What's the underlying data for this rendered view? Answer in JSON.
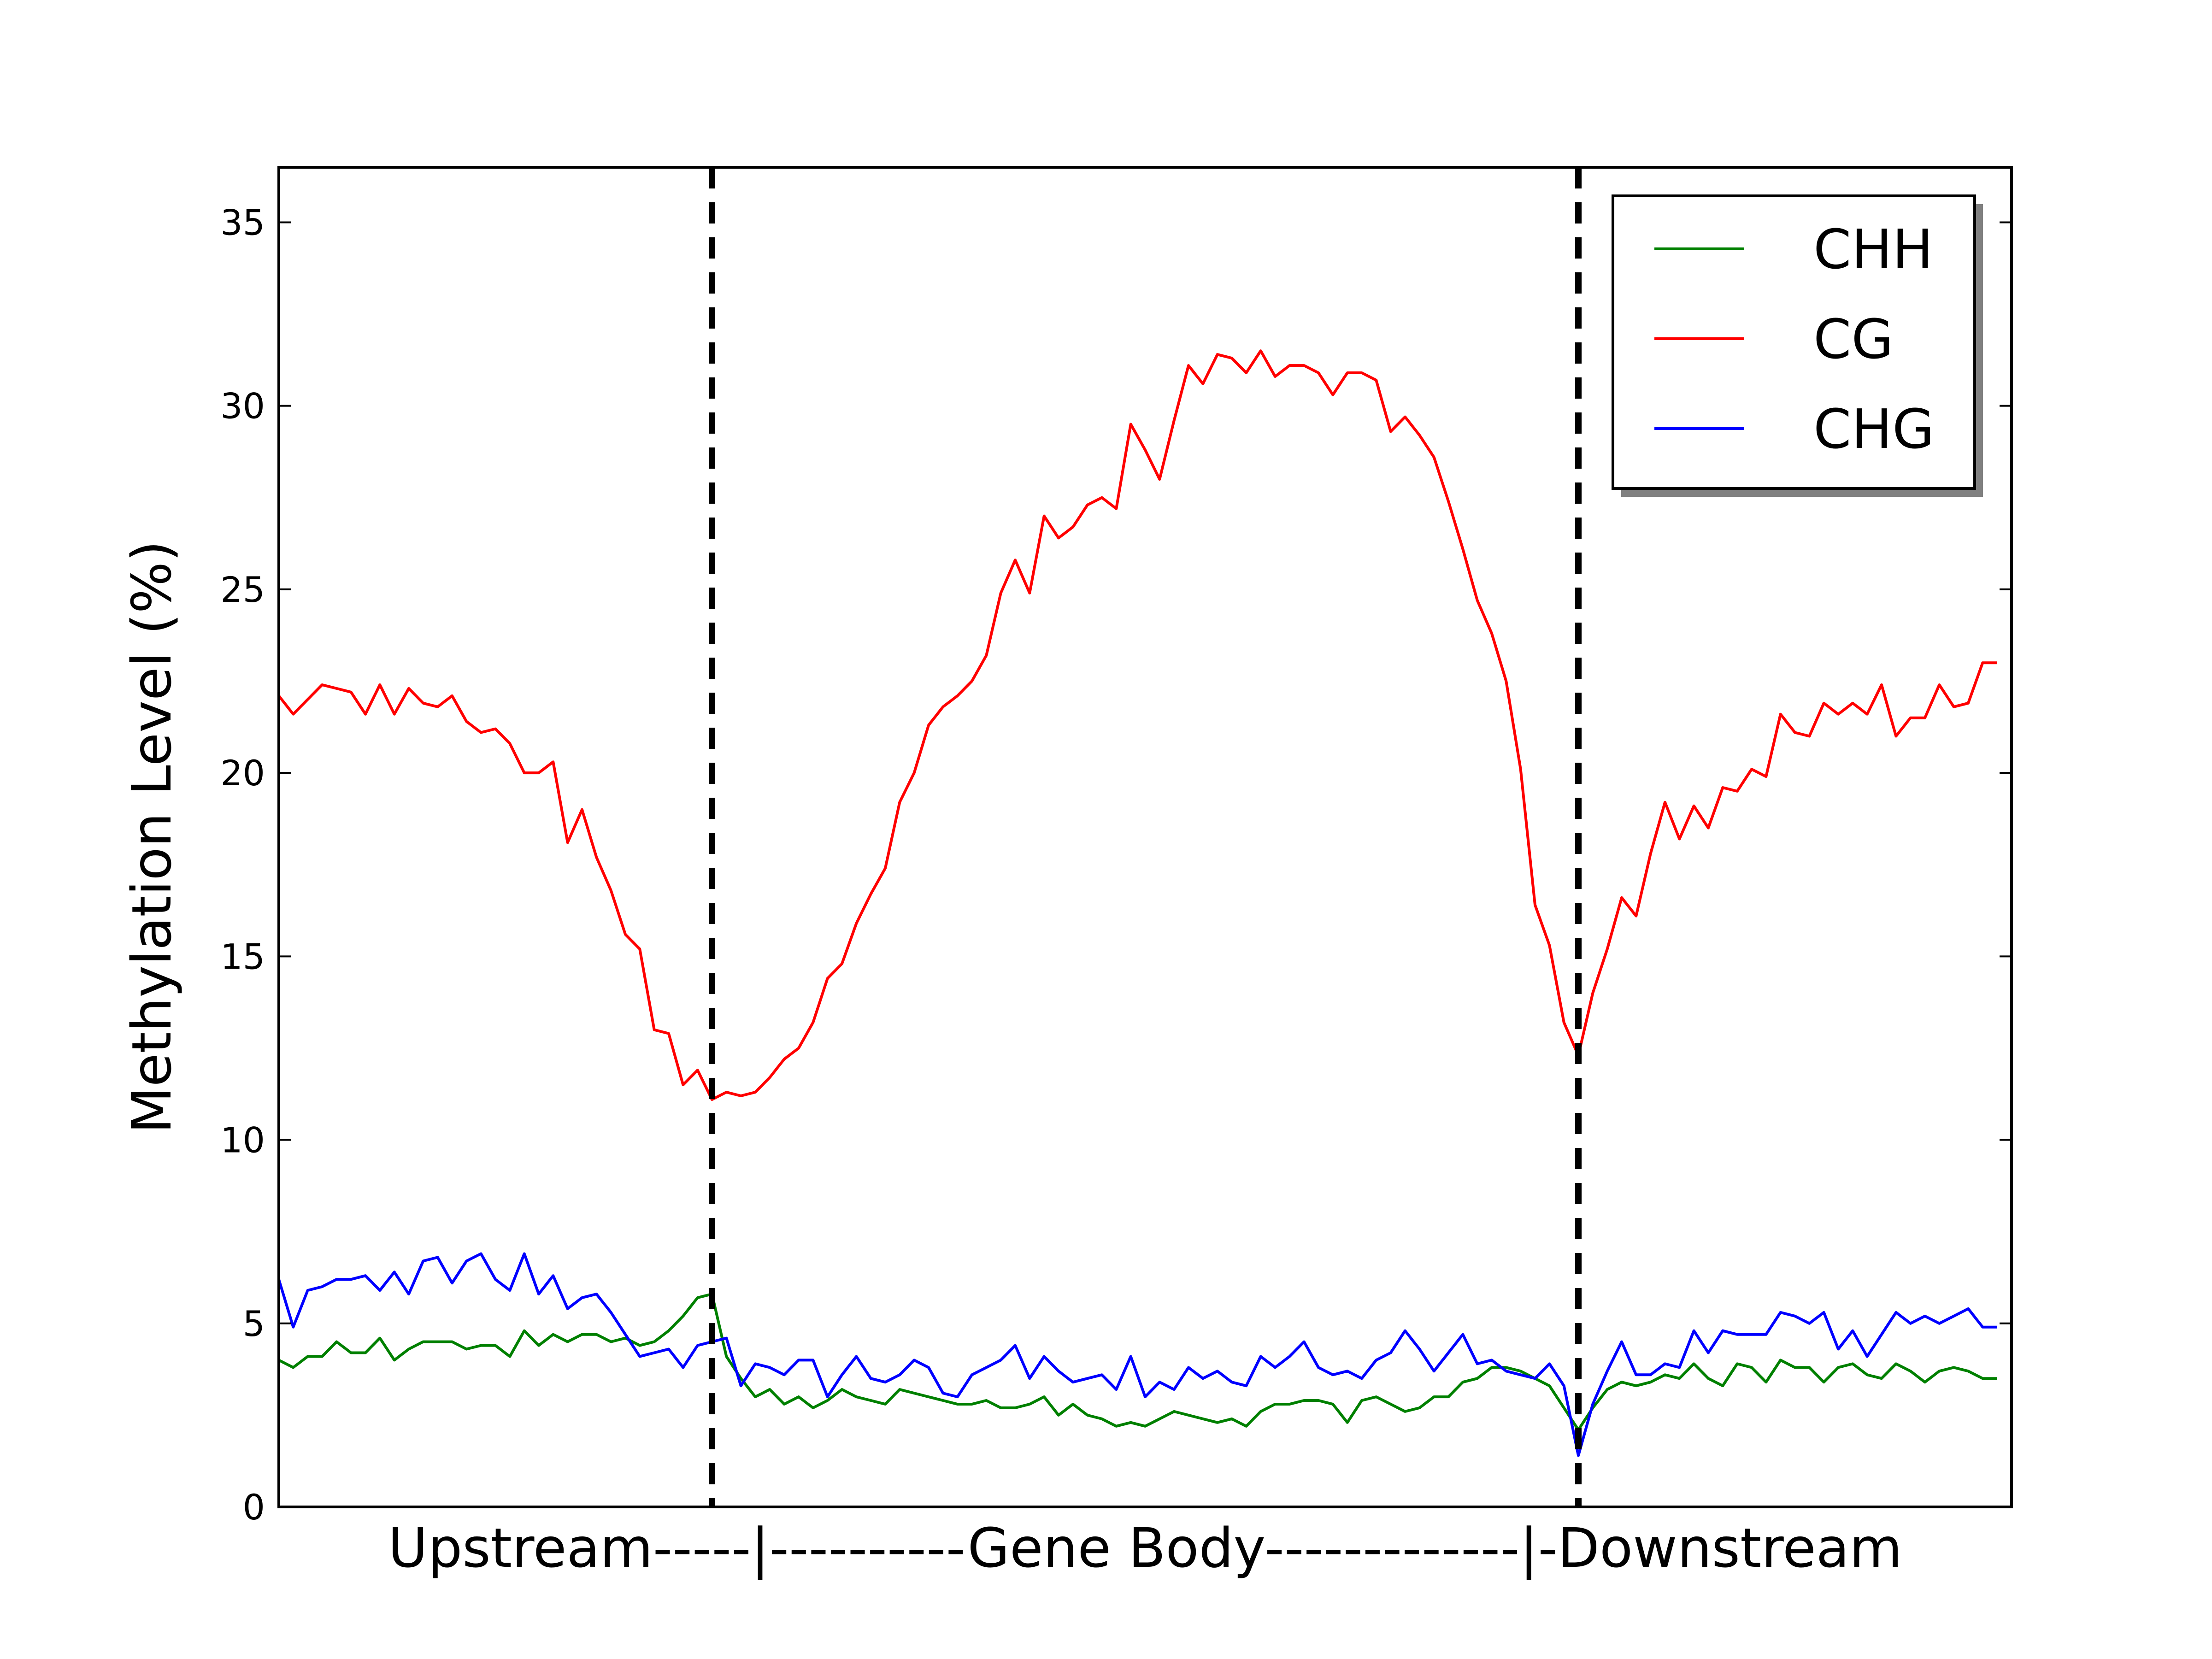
{
  "chart_data": {
    "type": "line",
    "title": "",
    "ylabel": "Methylation Level (%)",
    "xlabel": "Upstream-----|----------Gene Body-------------|-Downstream",
    "ylim": [
      0,
      36.5
    ],
    "yticks": [
      0,
      5,
      10,
      15,
      20,
      25,
      30,
      35
    ],
    "ytick_labels": [
      "0",
      "5",
      "10",
      "15",
      "20",
      "25",
      "30",
      "35"
    ],
    "xlim": [
      0,
      120
    ],
    "boundaries": [
      30,
      90
    ],
    "grid": false,
    "legend_position": "top-right",
    "x": [
      0,
      1,
      2,
      3,
      4,
      5,
      6,
      7,
      8,
      9,
      10,
      11,
      12,
      13,
      14,
      15,
      16,
      17,
      18,
      19,
      20,
      21,
      22,
      23,
      24,
      25,
      26,
      27,
      28,
      29,
      30,
      31,
      32,
      33,
      34,
      35,
      36,
      37,
      38,
      39,
      40,
      41,
      42,
      43,
      44,
      45,
      46,
      47,
      48,
      49,
      50,
      51,
      52,
      53,
      54,
      55,
      56,
      57,
      58,
      59,
      60,
      61,
      62,
      63,
      64,
      65,
      66,
      67,
      68,
      69,
      70,
      71,
      72,
      73,
      74,
      75,
      76,
      77,
      78,
      79,
      80,
      81,
      82,
      83,
      84,
      85,
      86,
      87,
      88,
      89,
      90,
      91,
      92,
      93,
      94,
      95,
      96,
      97,
      98,
      99,
      100,
      101,
      102,
      103,
      104,
      105,
      106,
      107,
      108,
      109,
      110,
      111,
      112,
      113,
      114,
      115,
      116,
      117,
      118,
      119
    ],
    "series": [
      {
        "name": "CHH",
        "color": "#008000",
        "values": [
          4.0,
          3.8,
          4.1,
          4.1,
          4.5,
          4.2,
          4.2,
          4.6,
          4.0,
          4.3,
          4.5,
          4.5,
          4.5,
          4.3,
          4.4,
          4.4,
          4.1,
          4.8,
          4.4,
          4.7,
          4.5,
          4.7,
          4.7,
          4.5,
          4.6,
          4.4,
          4.5,
          4.8,
          5.2,
          5.7,
          5.8,
          4.1,
          3.5,
          3.0,
          3.2,
          2.8,
          3.0,
          2.7,
          2.9,
          3.2,
          3.0,
          2.9,
          2.8,
          3.2,
          3.1,
          3.0,
          2.9,
          2.8,
          2.8,
          2.9,
          2.7,
          2.7,
          2.8,
          3.0,
          2.5,
          2.8,
          2.5,
          2.4,
          2.2,
          2.3,
          2.2,
          2.4,
          2.6,
          2.5,
          2.4,
          2.3,
          2.4,
          2.2,
          2.6,
          2.8,
          2.8,
          2.9,
          2.9,
          2.8,
          2.3,
          2.9,
          3.0,
          2.8,
          2.6,
          2.7,
          3.0,
          3.0,
          3.4,
          3.5,
          3.8,
          3.8,
          3.7,
          3.5,
          3.3,
          2.7,
          2.1,
          2.7,
          3.2,
          3.4,
          3.3,
          3.4,
          3.6,
          3.5,
          3.9,
          3.5,
          3.3,
          3.9,
          3.8,
          3.4,
          4.0,
          3.8,
          3.8,
          3.4,
          3.8,
          3.9,
          3.6,
          3.5,
          3.9,
          3.7,
          3.4,
          3.7,
          3.8,
          3.7,
          3.5,
          3.5
        ]
      },
      {
        "name": "CG",
        "color": "#ff0000",
        "values": [
          22.1,
          21.6,
          22.0,
          22.4,
          22.3,
          22.2,
          21.6,
          22.4,
          21.6,
          22.3,
          21.9,
          21.8,
          22.1,
          21.4,
          21.1,
          21.2,
          20.8,
          20.0,
          20.0,
          20.3,
          18.1,
          19.0,
          17.7,
          16.8,
          15.6,
          15.2,
          13.0,
          12.9,
          11.5,
          11.9,
          11.1,
          11.3,
          11.2,
          11.3,
          11.7,
          12.2,
          12.5,
          13.2,
          14.4,
          14.8,
          15.9,
          16.7,
          17.4,
          19.2,
          20.0,
          21.3,
          21.8,
          22.1,
          22.5,
          23.2,
          24.9,
          25.8,
          24.9,
          27.0,
          26.4,
          26.7,
          27.3,
          27.5,
          27.2,
          29.5,
          28.8,
          28.0,
          29.6,
          31.1,
          30.6,
          31.4,
          31.3,
          30.9,
          31.5,
          30.8,
          31.1,
          31.1,
          30.9,
          30.3,
          30.9,
          30.9,
          30.7,
          29.3,
          29.7,
          29.2,
          28.6,
          27.4,
          26.1,
          24.7,
          23.8,
          22.5,
          20.1,
          16.4,
          15.3,
          13.2,
          12.3,
          14.0,
          15.2,
          16.6,
          16.1,
          17.8,
          19.2,
          18.2,
          19.1,
          18.5,
          19.6,
          19.5,
          20.1,
          19.9,
          21.6,
          21.1,
          21.0,
          21.9,
          21.6,
          21.9,
          21.6,
          22.4,
          21.0,
          21.5,
          21.5,
          22.4,
          21.8,
          21.9,
          23.0,
          23.0
        ]
      },
      {
        "name": "CHG",
        "color": "#0000ff",
        "values": [
          6.2,
          4.9,
          5.9,
          6.0,
          6.2,
          6.2,
          6.3,
          5.9,
          6.4,
          5.8,
          6.7,
          6.8,
          6.1,
          6.7,
          6.9,
          6.2,
          5.9,
          6.9,
          5.8,
          6.3,
          5.4,
          5.7,
          5.8,
          5.3,
          4.7,
          4.1,
          4.2,
          4.3,
          3.8,
          4.4,
          4.5,
          4.6,
          3.3,
          3.9,
          3.8,
          3.6,
          4.0,
          4.0,
          3.0,
          3.6,
          4.1,
          3.5,
          3.4,
          3.6,
          4.0,
          3.8,
          3.1,
          3.0,
          3.6,
          3.8,
          4.0,
          4.4,
          3.5,
          4.1,
          3.7,
          3.4,
          3.5,
          3.6,
          3.2,
          4.1,
          3.0,
          3.4,
          3.2,
          3.8,
          3.5,
          3.7,
          3.4,
          3.3,
          4.1,
          3.8,
          4.1,
          4.5,
          3.8,
          3.6,
          3.7,
          3.5,
          4.0,
          4.2,
          4.8,
          4.3,
          3.7,
          4.2,
          4.7,
          3.9,
          4.0,
          3.7,
          3.6,
          3.5,
          3.9,
          3.3,
          1.4,
          2.8,
          3.7,
          4.5,
          3.6,
          3.6,
          3.9,
          3.8,
          4.8,
          4.2,
          4.8,
          4.7,
          4.7,
          4.7,
          5.3,
          5.2,
          5.0,
          5.3,
          4.3,
          4.8,
          4.1,
          4.7,
          5.3,
          5.0,
          5.2,
          5.0,
          5.2,
          5.4,
          4.9,
          4.9
        ]
      }
    ],
    "legend_order": [
      "CHH",
      "CG",
      "CHG"
    ]
  }
}
